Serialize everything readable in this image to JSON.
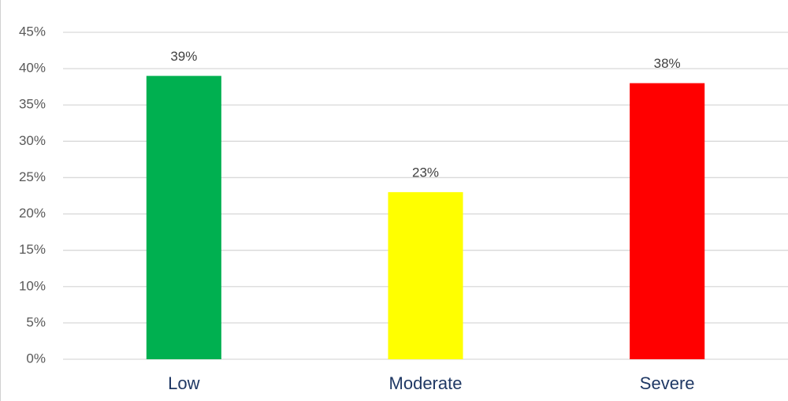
{
  "chart_data": {
    "type": "bar",
    "categories": [
      "Low",
      "Moderate",
      "Severe"
    ],
    "values": [
      39,
      23,
      38
    ],
    "value_labels": [
      "39%",
      "23%",
      "38%"
    ],
    "colors": [
      "#00b050",
      "#ffff00",
      "#ff0000"
    ],
    "ylim": [
      0,
      45
    ],
    "yticks": [
      {
        "value": 0,
        "label": "0%"
      },
      {
        "value": 5,
        "label": "5%"
      },
      {
        "value": 10,
        "label": "10%"
      },
      {
        "value": 15,
        "label": "15%"
      },
      {
        "value": 20,
        "label": "20%"
      },
      {
        "value": 25,
        "label": "25%"
      },
      {
        "value": 30,
        "label": "30%"
      },
      {
        "value": 35,
        "label": "35%"
      },
      {
        "value": 40,
        "label": "40%"
      },
      {
        "value": 45,
        "label": "45%"
      }
    ],
    "grid": true
  }
}
